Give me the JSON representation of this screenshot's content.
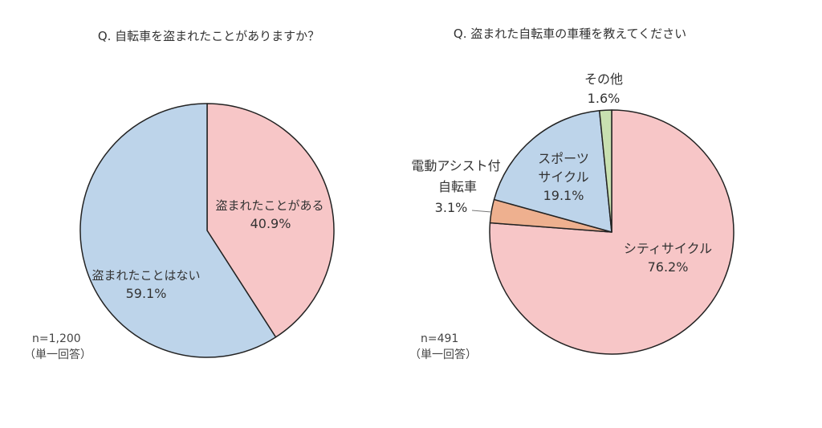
{
  "chart_data": [
    {
      "type": "pie",
      "title": "Q. 自転車を盗まれたことがありますか？",
      "slices": [
        {
          "label": "盗まれたことがある",
          "value": 40.9,
          "value_label": "40.9%",
          "color": "#f7c6c7"
        },
        {
          "label": "盗まれたことはない",
          "value": 59.1,
          "value_label": "59.1%",
          "color": "#bdd4ea"
        }
      ],
      "sample_size": "n=1,200",
      "answer_type": "（単一回答）"
    },
    {
      "type": "pie",
      "title": "Q. 盗まれた自転車の車種を教えてください",
      "slices": [
        {
          "label": "シティサイクル",
          "value": 76.2,
          "value_label": "76.2%",
          "color": "#f7c6c7"
        },
        {
          "label_lines": [
            "電動アシスト付",
            "自転車"
          ],
          "value": 3.1,
          "value_label": "3.1%",
          "color": "#eeb08f"
        },
        {
          "label_lines": [
            "スポーツ",
            "サイクル"
          ],
          "value": 19.1,
          "value_label": "19.1%",
          "color": "#bdd4ea"
        },
        {
          "label": "その他",
          "value": 1.6,
          "value_label": "1.6%",
          "color": "#c8e0b0"
        }
      ],
      "sample_size": "n=491",
      "answer_type": "（単一回答）"
    }
  ]
}
